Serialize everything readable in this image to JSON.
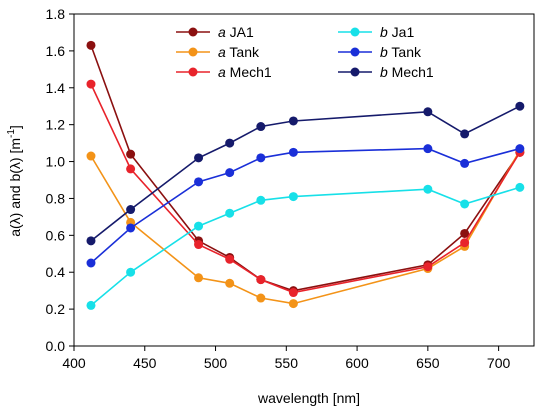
{
  "chart_data": {
    "type": "line",
    "xlabel": "wavelength [nm]",
    "ylabel": {
      "prefix": "a(λ) and b(λ) [m",
      "superscript": "-1",
      "suffix": "]"
    },
    "xlim": [
      400,
      725
    ],
    "ylim": [
      0.0,
      1.8
    ],
    "xticks": [
      400,
      450,
      500,
      550,
      600,
      650,
      700
    ],
    "xtick_labels": [
      "400",
      "450",
      "500",
      "550",
      "600",
      "650",
      "700"
    ],
    "yticks": [
      0.0,
      0.2,
      0.4,
      0.6,
      0.8,
      1.0,
      1.2,
      1.4,
      1.6,
      1.8
    ],
    "ytick_labels": [
      "0.0",
      "0.2",
      "0.4",
      "0.6",
      "0.8",
      "1.0",
      "1.2",
      "1.4",
      "1.6",
      "1.8"
    ],
    "grid": false,
    "legend_position": "top-center",
    "x": [
      412,
      440,
      488,
      510,
      532,
      555,
      650,
      676,
      715
    ],
    "series": [
      {
        "label_prefix": "a",
        "label_suffix": " JA1",
        "color": "#8b1010",
        "values": [
          1.63,
          1.04,
          0.57,
          0.48,
          0.36,
          0.3,
          0.44,
          0.61,
          1.05
        ]
      },
      {
        "label_prefix": "a",
        "label_suffix": " Tank",
        "color": "#f39318",
        "values": [
          1.03,
          0.67,
          0.37,
          0.34,
          0.26,
          0.23,
          0.42,
          0.54,
          1.06
        ]
      },
      {
        "label_prefix": "a",
        "label_suffix": " Mech1",
        "color": "#e8232b",
        "values": [
          1.42,
          0.96,
          0.55,
          0.47,
          0.36,
          0.29,
          0.43,
          0.56,
          1.05
        ]
      },
      {
        "label_prefix": "b",
        "label_suffix": " Ja1",
        "color": "#17e0e8",
        "values": [
          0.22,
          0.4,
          0.65,
          0.72,
          0.79,
          0.81,
          0.85,
          0.77,
          0.86
        ]
      },
      {
        "label_prefix": "b",
        "label_suffix": " Tank",
        "color": "#1a2fd8",
        "values": [
          0.45,
          0.64,
          0.89,
          0.94,
          1.02,
          1.05,
          1.07,
          0.99,
          1.07
        ]
      },
      {
        "label_prefix": "b",
        "label_suffix": " Mech1",
        "color": "#151a6b",
        "values": [
          0.57,
          0.74,
          1.02,
          1.1,
          1.19,
          1.22,
          1.27,
          1.15,
          1.3
        ]
      }
    ]
  }
}
